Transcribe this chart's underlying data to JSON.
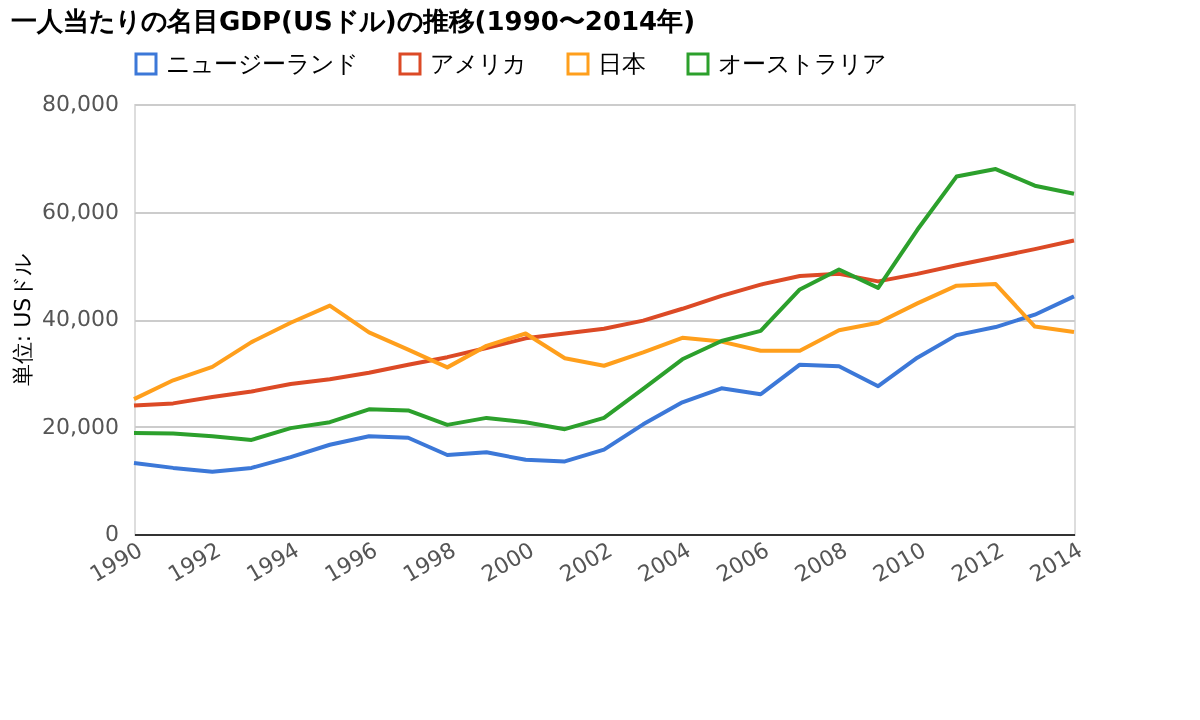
{
  "chart_data": {
    "type": "line",
    "title": "一人当たりの名目GDP(USドル)の推移(1990〜2014年)",
    "ylabel": "単位: USドル",
    "x": [
      1990,
      1991,
      1992,
      1993,
      1994,
      1995,
      1996,
      1997,
      1998,
      1999,
      2000,
      2001,
      2002,
      2003,
      2004,
      2005,
      2006,
      2007,
      2008,
      2009,
      2010,
      2011,
      2012,
      2013,
      2014
    ],
    "series": [
      {
        "name": "ニュージーランド",
        "color": "#3c78d8",
        "values": [
          13200,
          12300,
          11600,
          12300,
          14300,
          16600,
          18200,
          17900,
          14700,
          15200,
          13800,
          13500,
          15700,
          20400,
          24500,
          27100,
          26000,
          31500,
          31200,
          27500,
          32800,
          37000,
          38500,
          40800,
          44200
        ]
      },
      {
        "name": "アメリカ",
        "color": "#dc4a26",
        "values": [
          23900,
          24300,
          25500,
          26500,
          27900,
          28800,
          30000,
          31500,
          32900,
          34600,
          36400,
          37300,
          38200,
          39700,
          41900,
          44300,
          46400,
          48000,
          48400,
          47000,
          48400,
          50000,
          51500,
          53000,
          54600
        ]
      },
      {
        "name": "日本",
        "color": "#ff9f1c",
        "values": [
          25100,
          28600,
          31100,
          35700,
          39300,
          42500,
          37500,
          34300,
          31000,
          35000,
          37300,
          32700,
          31300,
          33800,
          36500,
          35800,
          34100,
          34100,
          37900,
          39300,
          42900,
          46200,
          46500,
          38600,
          37600
        ]
      },
      {
        "name": "オーストラリア",
        "color": "#2ca02c",
        "values": [
          18800,
          18700,
          18200,
          17500,
          19700,
          20800,
          23200,
          23000,
          20300,
          21600,
          20800,
          19500,
          21600,
          27000,
          32500,
          35900,
          37800,
          45500,
          49200,
          45800,
          56600,
          66500,
          67900,
          64800,
          63300
        ]
      }
    ],
    "xlim": [
      1990,
      2014
    ],
    "xticks": [
      1990,
      1992,
      1994,
      1996,
      1998,
      2000,
      2002,
      2004,
      2006,
      2008,
      2010,
      2012,
      2014
    ],
    "ylim": [
      0,
      80000
    ],
    "yticks": [
      0,
      {
        "value": 20000,
        "label": "20,000"
      },
      {
        "value": 40000,
        "label": "40,000"
      },
      {
        "value": 60000,
        "label": "60,000"
      },
      {
        "value": 80000,
        "label": "80,000"
      }
    ],
    "grid": "y",
    "legend": "top left",
    "marker": "none",
    "line_style": "solid"
  }
}
